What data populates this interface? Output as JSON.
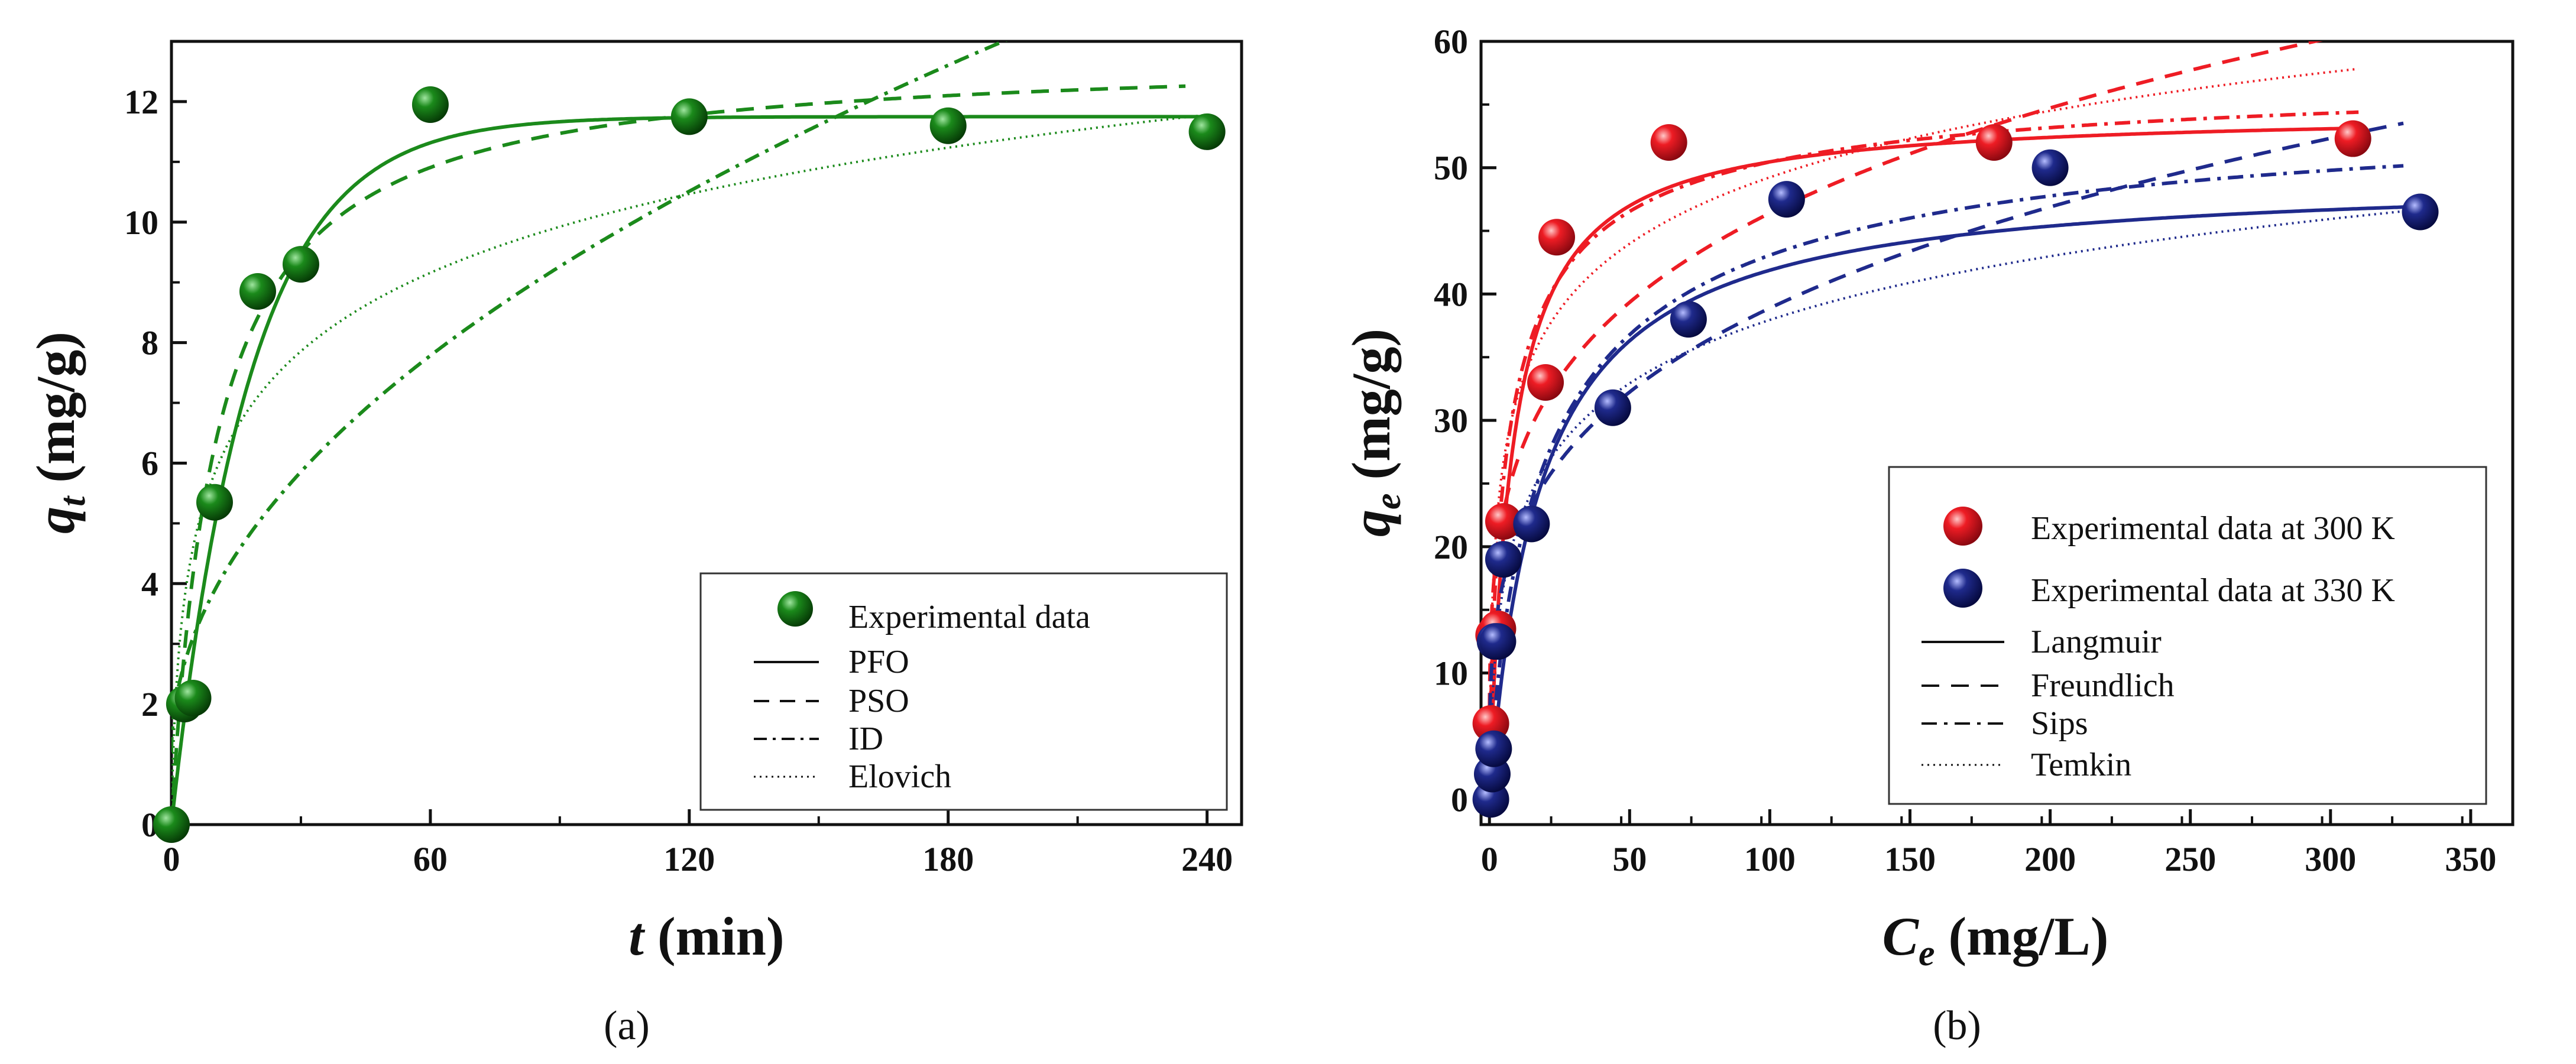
{
  "colors": {
    "green": "#1b8a1b",
    "green_dark": "#0b4d0b",
    "red": "#ee1c24",
    "red_dark": "#a8101a",
    "navy": "#1f2a8c",
    "navy_dark": "#0a1050"
  },
  "chart_data": [
    {
      "type": "scatter",
      "panel_label": "(a)",
      "title": "",
      "xlabel": {
        "main": "t",
        "unit": " (min)"
      },
      "ylabel": {
        "main": "q",
        "sub": "t",
        "unit": " (mg/g)"
      },
      "xlim": [
        0,
        248
      ],
      "ylim": [
        0,
        13
      ],
      "xticks": [
        0,
        60,
        120,
        180,
        240
      ],
      "yticks": [
        0,
        2,
        4,
        6,
        8,
        10,
        12
      ],
      "legend_position": "bottom-right",
      "legend": [
        {
          "label": "Experimental data",
          "kind": "marker",
          "color": "#1b8a1b"
        },
        {
          "label": "PFO",
          "kind": "solid"
        },
        {
          "label": "PSO",
          "kind": "dashed"
        },
        {
          "label": "ID",
          "kind": "dashdot"
        },
        {
          "label": "Elovich",
          "kind": "dotted"
        }
      ],
      "series": [
        {
          "name": "Experimental data",
          "kind": "points",
          "color": "#1b8a1b",
          "x": [
            0,
            3,
            5,
            10,
            20,
            30,
            60,
            120,
            180,
            240
          ],
          "y": [
            0,
            2.0,
            2.1,
            5.35,
            8.85,
            9.3,
            11.95,
            11.75,
            11.6,
            11.5
          ]
        },
        {
          "name": "PFO",
          "kind": "solid",
          "color": "#1b8a1b",
          "model": "pfo",
          "params": {
            "qe": 11.75,
            "k": 0.055
          },
          "x_range": [
            0,
            240
          ]
        },
        {
          "name": "PSO",
          "kind": "dashed",
          "color": "#1b8a1b",
          "model": "pso",
          "params": {
            "qe": 12.8,
            "k": 0.0075
          },
          "x_range": [
            0,
            235
          ]
        },
        {
          "name": "ID",
          "kind": "dashdot",
          "color": "#1b8a1b",
          "model": "id",
          "params": {
            "k": 0.85,
            "c": 1.2
          },
          "x_range": [
            0,
            240
          ]
        },
        {
          "name": "Elovich",
          "kind": "dotted",
          "color": "#1b8a1b",
          "model": "elovich",
          "params": {
            "a": 1.9,
            "b": 2.05
          },
          "x_range": [
            0,
            240
          ]
        }
      ]
    },
    {
      "type": "scatter",
      "panel_label": "(b)",
      "title": "",
      "xlabel": {
        "main": "C",
        "sub": "e",
        "unit": " (mg/L)"
      },
      "ylabel": {
        "main": "q",
        "sub": "e",
        "unit": " (mg/g)"
      },
      "xlim": [
        -3,
        365
      ],
      "ylim": [
        -2,
        60
      ],
      "xticks": [
        0,
        50,
        100,
        150,
        200,
        250,
        300,
        350
      ],
      "yticks": [
        0,
        10,
        20,
        30,
        40,
        50,
        60
      ],
      "legend_position": "bottom-right",
      "legend": [
        {
          "label": "Experimental data at 300 K",
          "kind": "marker",
          "color": "#ee1c24"
        },
        {
          "label": "Experimental data at 330 K",
          "kind": "marker",
          "color": "#1f2a8c"
        },
        {
          "label": "Langmuir",
          "kind": "solid"
        },
        {
          "label": "Freundlich",
          "kind": "dashed"
        },
        {
          "label": "Sips",
          "kind": "dashdot"
        },
        {
          "label": "Temkin",
          "kind": "dotted"
        }
      ],
      "series": [
        {
          "name": "Experimental data at 300 K",
          "kind": "points",
          "color": "#ee1c24",
          "x": [
            0.5,
            1.5,
            3,
            5,
            20,
            24,
            64,
            180,
            308
          ],
          "y": [
            6,
            13,
            13.5,
            22,
            33,
            44.5,
            52,
            52,
            52.3
          ]
        },
        {
          "name": "Experimental data at 330 K",
          "kind": "points",
          "color": "#1f2a8c",
          "x": [
            0.5,
            1,
            1.5,
            2,
            3,
            5,
            15,
            44,
            71,
            106,
            200,
            332
          ],
          "y": [
            0,
            2,
            4,
            12.5,
            12.5,
            19,
            21.8,
            31,
            38,
            47.5,
            50,
            46.5
          ]
        },
        {
          "name": "Langmuir 300 K",
          "kind": "solid",
          "color": "#ee1c24",
          "model": "langmuir",
          "params": {
            "qm": 54.5,
            "K": 0.125
          },
          "x_range": [
            0,
            310
          ]
        },
        {
          "name": "Freundlich 300 K",
          "kind": "dashed",
          "color": "#ee1c24",
          "model": "freundlich",
          "params": {
            "K": 15.5,
            "n": 4.2
          },
          "x_range": [
            0,
            310
          ]
        },
        {
          "name": "Sips 300 K",
          "kind": "dashdot",
          "color": "#ee1c24",
          "model": "sips",
          "params": {
            "qm": 58,
            "K": 0.14,
            "n": 0.72
          },
          "x_range": [
            0,
            310
          ]
        },
        {
          "name": "Temkin 300 K",
          "kind": "dotted",
          "color": "#ee1c24",
          "model": "temkin",
          "params": {
            "B": 7.6,
            "A": 6.5
          },
          "x_range": [
            0,
            310
          ]
        },
        {
          "name": "Langmuir 330 K",
          "kind": "solid",
          "color": "#1f2a8c",
          "model": "langmuir",
          "params": {
            "qm": 49.5,
            "K": 0.055
          },
          "x_range": [
            0,
            330
          ]
        },
        {
          "name": "Freundlich 330 K",
          "kind": "dashed",
          "color": "#1f2a8c",
          "model": "freundlich",
          "params": {
            "K": 11.2,
            "n": 3.7
          },
          "x_range": [
            0,
            326
          ]
        },
        {
          "name": "Sips 330 K",
          "kind": "dashdot",
          "color": "#1f2a8c",
          "model": "sips",
          "params": {
            "qm": 56,
            "K": 0.045,
            "n": 0.8
          },
          "x_range": [
            0,
            326
          ]
        },
        {
          "name": "Temkin 330 K",
          "kind": "dotted",
          "color": "#1f2a8c",
          "model": "temkin",
          "params": {
            "B": 7.3,
            "A": 1.8
          },
          "x_range": [
            0,
            328
          ]
        }
      ]
    }
  ]
}
